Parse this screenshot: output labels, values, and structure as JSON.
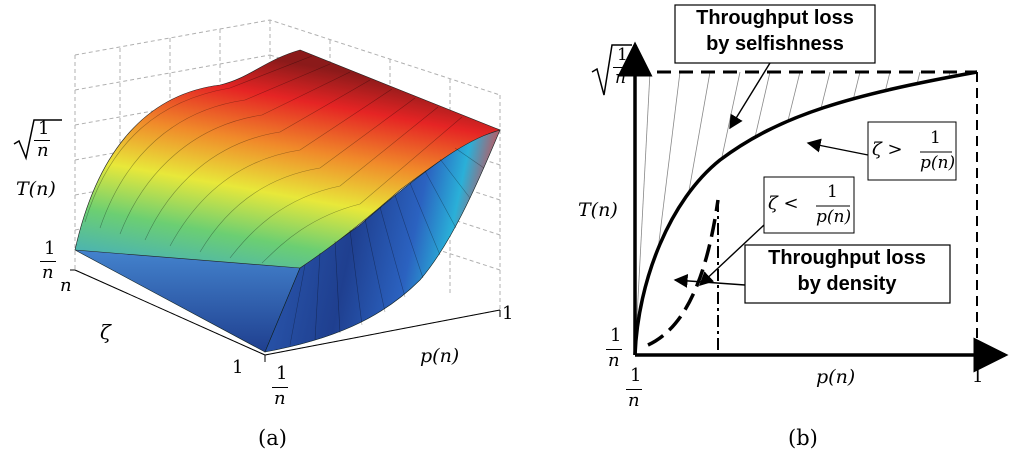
{
  "panel_a": {
    "caption": "(a)",
    "z_labels": {
      "top": "1",
      "top_denom": "n",
      "var": "T(n)",
      "bottom_num": "1",
      "bottom_den": "n"
    },
    "zeta_axis": {
      "start": "n",
      "var": "ζ",
      "end": "1"
    },
    "p_axis": {
      "start_num": "1",
      "start_den": "n",
      "var": "p(n)",
      "end": "1"
    }
  },
  "panel_b": {
    "caption": "(b)",
    "y_labels": {
      "top_num": "1",
      "top_den": "n",
      "var": "T(n)",
      "bottom_num": "1",
      "bottom_den": "n"
    },
    "x_labels": {
      "start_num": "1",
      "start_den": "n",
      "var": "p(n)",
      "end": "1"
    },
    "box_selfishness": [
      "Throughput loss",
      "by selfishness"
    ],
    "box_density": [
      "Throughput loss",
      "by density"
    ],
    "cond_greater": {
      "lhs": "ζ >",
      "num": "1",
      "den": "p(n)"
    },
    "cond_less": {
      "lhs": "ζ <",
      "num": "1",
      "den": "p(n)"
    }
  },
  "colors": {
    "surface_high": "#8b1a1a",
    "surface_low": "#1f3f8f",
    "line": "#000000"
  }
}
